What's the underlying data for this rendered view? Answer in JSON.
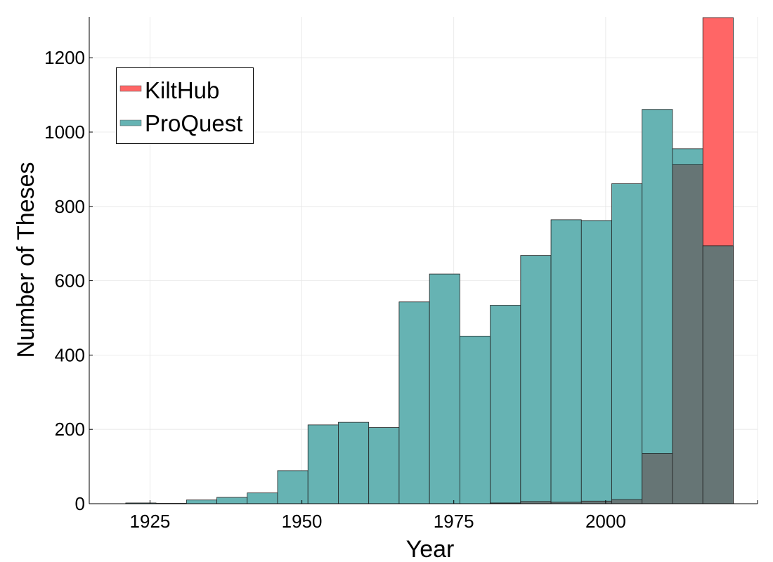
{
  "chart_data": {
    "type": "bar",
    "title": "",
    "xlabel": "Year",
    "ylabel": "Number of Theses",
    "xlim": [
      1915,
      2025
    ],
    "ylim": [
      0,
      1310
    ],
    "xticks": [
      1925,
      1950,
      1975,
      2000
    ],
    "yticks": [
      0,
      200,
      400,
      600,
      800,
      1000,
      1200
    ],
    "grid": true,
    "legend_position": "top-left",
    "bin_width": 5,
    "bin_starts": [
      1921,
      1926,
      1931,
      1936,
      1941,
      1946,
      1951,
      1956,
      1961,
      1966,
      1971,
      1976,
      1981,
      1986,
      1991,
      1996,
      2001,
      2006,
      2011,
      2016
    ],
    "series": [
      {
        "name": "KiltHub",
        "color": "#ff6666",
        "values": [
          0,
          0,
          0,
          0,
          0,
          0,
          0,
          0,
          0,
          0,
          0,
          0,
          2,
          6,
          4,
          7,
          11,
          135,
          912,
          1308
        ]
      },
      {
        "name": "ProQuest",
        "color": "#66b3b3",
        "values": [
          2,
          1,
          10,
          17,
          29,
          89,
          212,
          219,
          205,
          543,
          618,
          451,
          534,
          668,
          764,
          762,
          861,
          1061,
          955,
          694
        ]
      }
    ]
  }
}
